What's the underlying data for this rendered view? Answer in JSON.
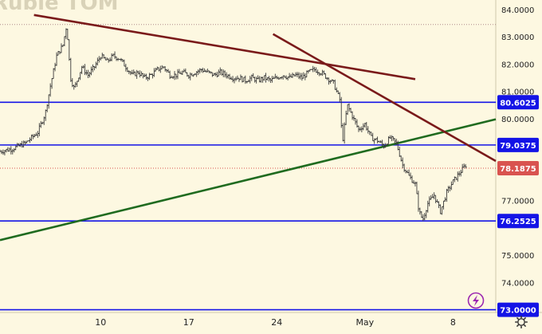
{
  "chart_data": {
    "type": "candlestick",
    "title": "Rublе TOM",
    "yticks": [
      "84.0000",
      "83.0000",
      "82.0000",
      "81.0000",
      "80.0000",
      "77.0000",
      "75.0000",
      "74.0000"
    ],
    "xticks": [
      {
        "label": "10",
        "day": 10
      },
      {
        "label": "17",
        "day": 17
      },
      {
        "label": "24",
        "day": 24
      },
      {
        "label": "May",
        "day": 31
      },
      {
        "label": "8",
        "day": 38
      }
    ],
    "ylim": [
      72.9,
      84.35
    ],
    "xlim": [
      2.0,
      41.4
    ],
    "grid": false,
    "levels": [
      {
        "name": "level-80-6025",
        "value": 80.6025,
        "label": "80.6025",
        "color": "#1414e6"
      },
      {
        "name": "level-79-0375",
        "value": 79.0375,
        "label": "79.0375",
        "color": "#1414e6"
      },
      {
        "name": "level-76-2525",
        "value": 76.2525,
        "label": "76.2525",
        "color": "#1414e6"
      },
      {
        "name": "level-73-0000",
        "value": 73.0,
        "label": "73.0000",
        "color": "#1414e6"
      }
    ],
    "current_price": {
      "value": 78.1875,
      "label": "78.1875",
      "color": "#d9534f"
    },
    "dotted_high": 83.45,
    "trendlines": [
      {
        "name": "green-support-trendline",
        "color": "#1f6b1f",
        "points": [
          [
            2.0,
            75.55
          ],
          [
            41.4,
            79.98
          ]
        ]
      },
      {
        "name": "upper-resistance-trendline",
        "color": "#7a1a1a",
        "points": [
          [
            4.7,
            83.8
          ],
          [
            35.0,
            81.45
          ]
        ]
      },
      {
        "name": "steep-resistance-trendline",
        "color": "#7a1a1a",
        "points": [
          [
            23.7,
            83.1
          ],
          [
            41.4,
            78.45
          ]
        ]
      }
    ],
    "price_path": [
      [
        2.0,
        78.8
      ],
      [
        3.0,
        78.9
      ],
      [
        4.0,
        79.1
      ],
      [
        5.0,
        79.5
      ],
      [
        5.6,
        80.2
      ],
      [
        6.0,
        81.2
      ],
      [
        6.5,
        82.3
      ],
      [
        7.0,
        82.7
      ],
      [
        7.3,
        83.45
      ],
      [
        7.6,
        81.5
      ],
      [
        7.9,
        81.1
      ],
      [
        8.5,
        81.9
      ],
      [
        9.0,
        81.6
      ],
      [
        9.5,
        81.9
      ],
      [
        10.0,
        82.3
      ],
      [
        10.5,
        82.1
      ],
      [
        11.0,
        82.3
      ],
      [
        11.5,
        82.2
      ],
      [
        12.0,
        81.9
      ],
      [
        12.5,
        81.6
      ],
      [
        13.0,
        81.7
      ],
      [
        13.5,
        81.5
      ],
      [
        14.0,
        81.6
      ],
      [
        14.5,
        81.8
      ],
      [
        15.0,
        81.9
      ],
      [
        15.5,
        81.6
      ],
      [
        16.0,
        81.6
      ],
      [
        16.5,
        81.7
      ],
      [
        17.0,
        81.6
      ],
      [
        17.5,
        81.7
      ],
      [
        18.0,
        81.8
      ],
      [
        18.5,
        81.7
      ],
      [
        19.0,
        81.6
      ],
      [
        19.5,
        81.7
      ],
      [
        20.0,
        81.6
      ],
      [
        20.5,
        81.5
      ],
      [
        21.0,
        81.5
      ],
      [
        21.5,
        81.4
      ],
      [
        22.0,
        81.5
      ],
      [
        22.5,
        81.4
      ],
      [
        23.0,
        81.5
      ],
      [
        23.5,
        81.4
      ],
      [
        24.0,
        81.5
      ],
      [
        24.5,
        81.6
      ],
      [
        25.0,
        81.5
      ],
      [
        25.5,
        81.6
      ],
      [
        26.0,
        81.5
      ],
      [
        26.5,
        81.7
      ],
      [
        27.0,
        81.8
      ],
      [
        27.5,
        81.7
      ],
      [
        28.0,
        81.5
      ],
      [
        28.5,
        81.3
      ],
      [
        29.0,
        80.7
      ],
      [
        29.2,
        79.1
      ],
      [
        29.6,
        80.5
      ],
      [
        30.0,
        80.1
      ],
      [
        30.5,
        79.6
      ],
      [
        31.0,
        79.8
      ],
      [
        31.5,
        79.3
      ],
      [
        32.0,
        79.2
      ],
      [
        32.5,
        79.0
      ],
      [
        33.0,
        79.3
      ],
      [
        33.5,
        79.1
      ],
      [
        34.0,
        78.3
      ],
      [
        34.5,
        77.9
      ],
      [
        35.0,
        77.6
      ],
      [
        35.3,
        76.6
      ],
      [
        35.6,
        76.3
      ],
      [
        36.0,
        76.9
      ],
      [
        36.5,
        77.2
      ],
      [
        37.0,
        76.6
      ],
      [
        37.5,
        77.3
      ],
      [
        38.0,
        77.7
      ],
      [
        38.5,
        78.0
      ],
      [
        39.0,
        78.3
      ]
    ]
  },
  "toolbar": {
    "settings_icon": "gear-icon",
    "replay_icon": "lightning-icon"
  }
}
